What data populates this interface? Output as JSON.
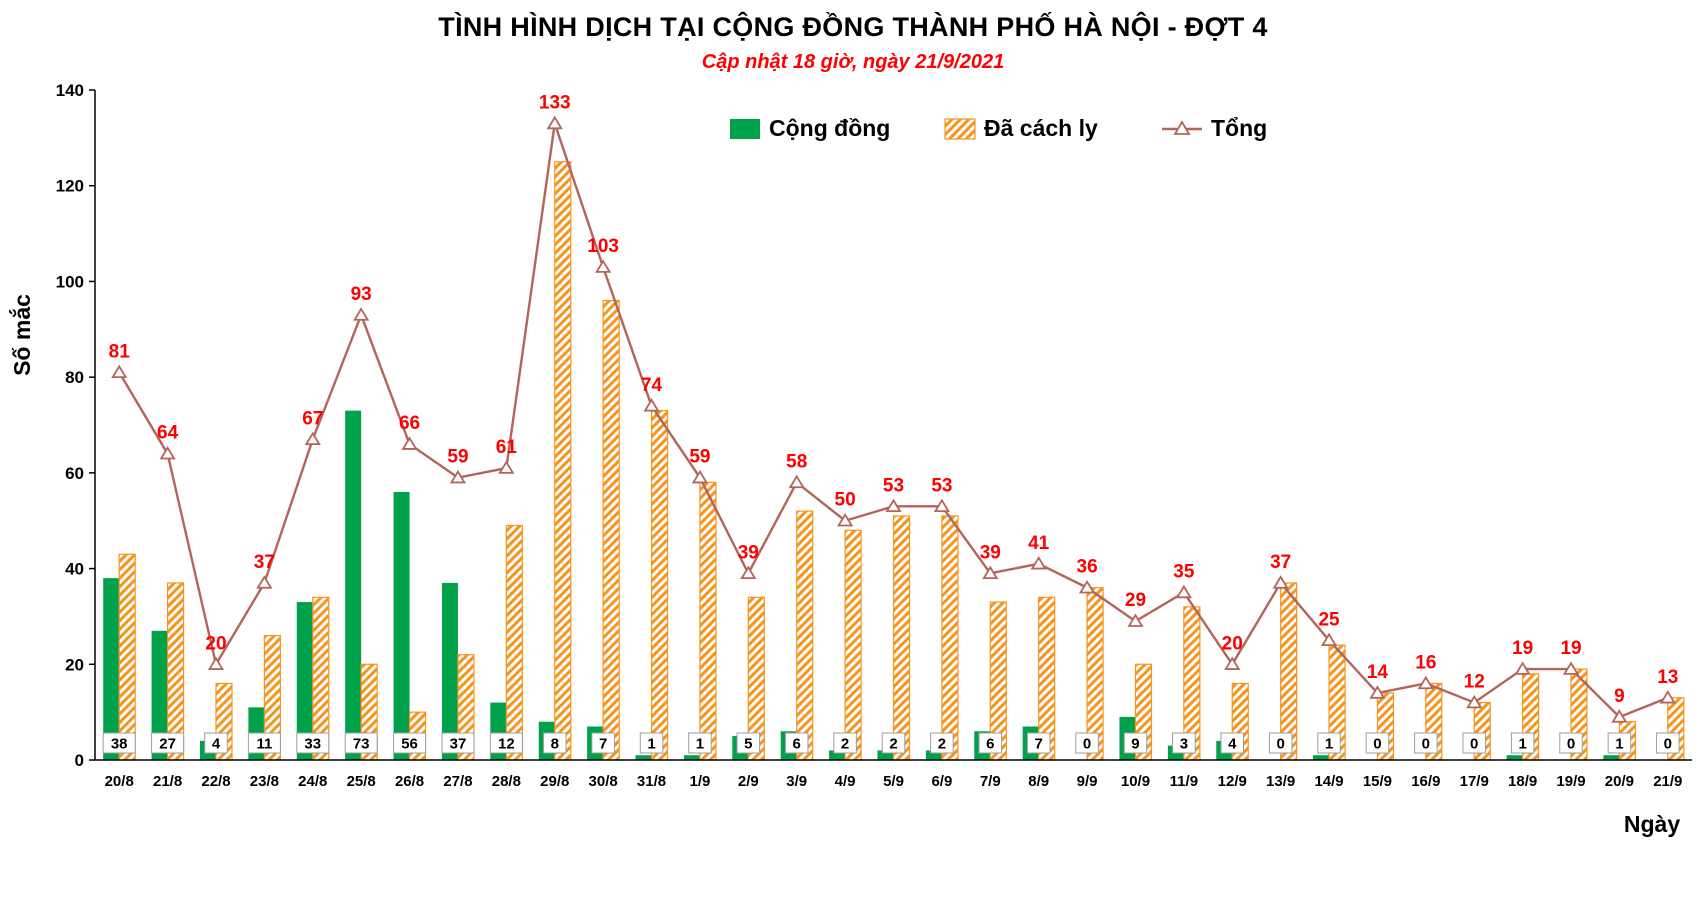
{
  "chart_data": {
    "type": "bar",
    "title": "TÌNH HÌNH DỊCH TẠI CỘNG ĐỒNG THÀNH PHỐ HÀ NỘI - ĐỢT 4",
    "subtitle": "Cập nhật 18 giờ, ngày 21/9/2021",
    "xlabel": "Ngày",
    "ylabel": "Số mắc",
    "ylim": [
      0,
      140
    ],
    "yticks": [
      0,
      20,
      40,
      60,
      80,
      100,
      120,
      140
    ],
    "grid": false,
    "legend_position": "top",
    "categories": [
      "20/8",
      "21/8",
      "22/8",
      "23/8",
      "24/8",
      "25/8",
      "26/8",
      "27/8",
      "28/8",
      "29/8",
      "30/8",
      "31/8",
      "1/9",
      "2/9",
      "3/9",
      "4/9",
      "5/9",
      "6/9",
      "7/9",
      "8/9",
      "9/9",
      "10/9",
      "11/9",
      "12/9",
      "13/9",
      "14/9",
      "15/9",
      "16/9",
      "17/9",
      "18/9",
      "19/9",
      "20/9",
      "21/9"
    ],
    "series": [
      {
        "name": "Cộng đồng",
        "type": "bar",
        "style": "solid",
        "color": "#00A14B",
        "show_value_labels": "bottom",
        "values": [
          38,
          27,
          4,
          11,
          33,
          73,
          56,
          37,
          12,
          8,
          7,
          1,
          1,
          5,
          6,
          2,
          2,
          2,
          6,
          7,
          0,
          9,
          3,
          4,
          0,
          1,
          0,
          0,
          0,
          1,
          0,
          1,
          0
        ]
      },
      {
        "name": "Đã cách ly",
        "type": "bar",
        "style": "hatched",
        "color": "#F7941D",
        "values": [
          43,
          37,
          16,
          26,
          34,
          20,
          10,
          22,
          49,
          125,
          96,
          73,
          58,
          34,
          52,
          48,
          51,
          51,
          33,
          34,
          36,
          20,
          32,
          16,
          37,
          24,
          14,
          16,
          12,
          18,
          19,
          8,
          13
        ]
      },
      {
        "name": "Tổng",
        "type": "line",
        "style": "triangle-marker",
        "color": "#B4645A",
        "label_color": "#FF0000",
        "values": [
          81,
          64,
          20,
          37,
          67,
          93,
          66,
          59,
          61,
          133,
          103,
          74,
          59,
          39,
          58,
          50,
          53,
          53,
          39,
          41,
          36,
          29,
          35,
          20,
          37,
          25,
          14,
          16,
          12,
          19,
          19,
          9,
          13
        ]
      }
    ],
    "colors": {
      "axis": "#000000",
      "text": "#000000",
      "value_box_border": "#9E9E9E",
      "total_label": "#FF0000",
      "subtitle": "#FF0000"
    }
  }
}
